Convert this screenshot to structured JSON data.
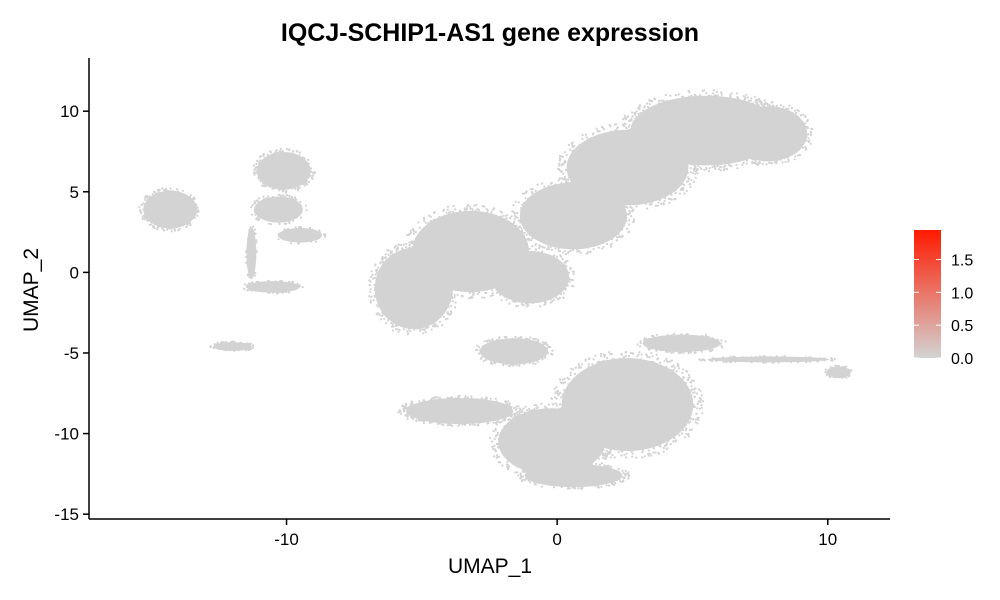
{
  "chart_data": {
    "type": "scatter",
    "title": "IQCJ-SCHIP1-AS1 gene expression",
    "xlabel": "UMAP_1",
    "ylabel": "UMAP_2",
    "xlim": [
      -17.3,
      12.3
    ],
    "ylim": [
      -15.3,
      13.3
    ],
    "xticks": [
      -10,
      0,
      10
    ],
    "yticks": [
      -15,
      -10,
      -5,
      0,
      5,
      10
    ],
    "grid": false,
    "point_color": "#d3d3d3",
    "series": [
      {
        "values_description": "all cells, expression 0",
        "clusters": [
          {
            "cx": -14.3,
            "cy": 3.9,
            "rx": 1.1,
            "ry": 1.3,
            "n": 320
          },
          {
            "cx": -10.1,
            "cy": 6.3,
            "rx": 1.1,
            "ry": 1.3,
            "n": 320
          },
          {
            "cx": -10.3,
            "cy": 3.9,
            "rx": 1.0,
            "ry": 0.9,
            "n": 160
          },
          {
            "cx": -9.5,
            "cy": 2.3,
            "rx": 0.9,
            "ry": 0.5,
            "n": 90
          },
          {
            "cx": -12.0,
            "cy": -4.6,
            "rx": 0.8,
            "ry": 0.3,
            "n": 90
          },
          {
            "cx": -10.5,
            "cy": -0.9,
            "rx": 1.1,
            "ry": 0.4,
            "n": 90
          },
          {
            "cx": -11.3,
            "cy": 1.2,
            "rx": 0.2,
            "ry": 1.8,
            "n": 60
          },
          {
            "cx": -5.3,
            "cy": -1.0,
            "rx": 1.6,
            "ry": 2.8,
            "n": 700
          },
          {
            "cx": -3.2,
            "cy": 1.3,
            "rx": 2.4,
            "ry": 2.8,
            "n": 700
          },
          {
            "cx": -1.0,
            "cy": -0.3,
            "rx": 1.6,
            "ry": 1.8,
            "n": 350
          },
          {
            "cx": 0.6,
            "cy": 3.5,
            "rx": 2.2,
            "ry": 2.3,
            "n": 600
          },
          {
            "cx": 2.6,
            "cy": 6.5,
            "rx": 2.5,
            "ry": 2.6,
            "n": 800
          },
          {
            "cx": 5.5,
            "cy": 8.8,
            "rx": 3.1,
            "ry": 2.4,
            "n": 1100
          },
          {
            "cx": 7.8,
            "cy": 8.6,
            "rx": 1.6,
            "ry": 1.9,
            "n": 450
          },
          {
            "cx": -1.6,
            "cy": -4.9,
            "rx": 1.4,
            "ry": 0.9,
            "n": 250
          },
          {
            "cx": 2.6,
            "cy": -8.2,
            "rx": 2.7,
            "ry": 3.2,
            "n": 1100
          },
          {
            "cx": -0.2,
            "cy": -10.5,
            "rx": 2.2,
            "ry": 2.3,
            "n": 650
          },
          {
            "cx": -3.6,
            "cy": -8.6,
            "rx": 2.2,
            "ry": 0.9,
            "n": 500
          },
          {
            "cx": 0.6,
            "cy": -12.6,
            "rx": 2.0,
            "ry": 0.8,
            "n": 350
          },
          {
            "cx": 4.6,
            "cy": -4.4,
            "rx": 1.6,
            "ry": 0.6,
            "n": 200
          },
          {
            "cx": 10.4,
            "cy": -6.2,
            "rx": 0.5,
            "ry": 0.4,
            "n": 90
          },
          {
            "cx": 7.8,
            "cy": -5.4,
            "rx": 2.5,
            "ry": 0.2,
            "n": 110
          }
        ]
      }
    ],
    "legend": {
      "placement": "right",
      "gradient_low": "#d3d3d3",
      "gradient_high": "#ff1a00",
      "range": [
        0,
        1.95
      ],
      "labels": [
        "1.5",
        "1.0",
        "0.5",
        "0.0"
      ],
      "label_values": [
        1.5,
        1.0,
        0.5,
        0.0
      ]
    }
  }
}
